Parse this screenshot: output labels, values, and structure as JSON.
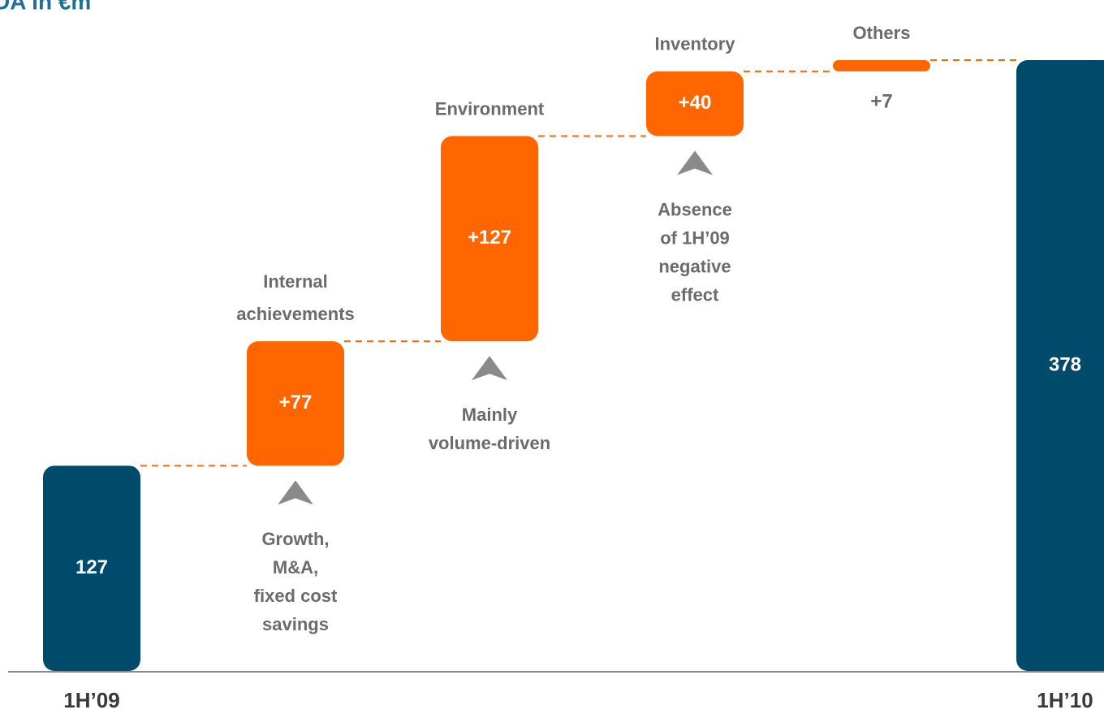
{
  "chart_data": {
    "type": "waterfall",
    "title": "DA in €m",
    "categories": [
      "1H’09",
      "Internal achievements",
      "Environment",
      "Inventory",
      "Others",
      "1H’10"
    ],
    "values": [
      127,
      77,
      127,
      40,
      7,
      378
    ],
    "value_labels": [
      "127",
      "+77",
      "+127",
      "+40",
      "+7",
      "378"
    ],
    "annotations": [
      null,
      [
        "Growth,",
        "M&A,",
        "fixed cost",
        "savings"
      ],
      [
        "Mainly",
        "volume-driven"
      ],
      [
        "Absence",
        "of 1H’09",
        "negative",
        "effect"
      ],
      null,
      null
    ],
    "total_color": "#004a6b",
    "delta_color": "#ff6600"
  }
}
